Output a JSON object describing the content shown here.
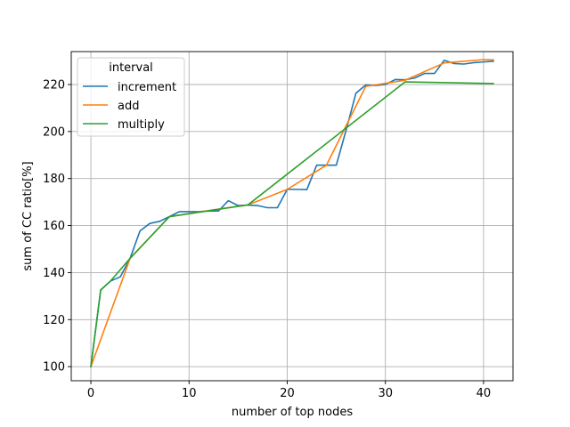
{
  "chart_data": {
    "type": "line",
    "title": "",
    "xlabel": "number of top nodes",
    "ylabel": "sum of CC ratio[%]",
    "xlim": [
      -2,
      43
    ],
    "ylim": [
      94,
      234
    ],
    "xticks": [
      0,
      10,
      20,
      30,
      40
    ],
    "yticks": [
      100,
      120,
      140,
      160,
      180,
      200,
      220
    ],
    "grid": true,
    "legend": {
      "title": "interval",
      "position": "top-left"
    },
    "series": [
      {
        "name": "increment",
        "color": "#1f77b4",
        "points": [
          [
            0,
            100
          ],
          [
            1,
            132.6
          ],
          [
            2,
            136.4
          ],
          [
            3,
            138.2
          ],
          [
            4,
            146.1
          ],
          [
            5,
            157.7
          ],
          [
            6,
            160.9
          ],
          [
            7,
            161.8
          ],
          [
            8,
            163.8
          ],
          [
            9,
            165.9
          ],
          [
            10,
            165.9
          ],
          [
            11,
            165.9
          ],
          [
            12,
            166.2
          ],
          [
            13,
            166.2
          ],
          [
            14,
            170.6
          ],
          [
            15,
            168.5
          ],
          [
            16,
            168.7
          ],
          [
            17,
            168.5
          ],
          [
            18,
            167.6
          ],
          [
            19,
            167.6
          ],
          [
            20,
            175.4
          ],
          [
            21,
            175.4
          ],
          [
            22,
            175.3
          ],
          [
            23,
            185.7
          ],
          [
            24,
            185.7
          ],
          [
            25,
            185.7
          ],
          [
            26,
            200.6
          ],
          [
            27,
            216.3
          ],
          [
            28,
            219.8
          ],
          [
            29,
            219.6
          ],
          [
            30,
            220.0
          ],
          [
            31,
            222.1
          ],
          [
            32,
            222.0
          ],
          [
            33,
            222.8
          ],
          [
            34,
            224.7
          ],
          [
            35,
            224.7
          ],
          [
            36,
            230.3
          ],
          [
            37,
            228.9
          ],
          [
            38,
            228.7
          ],
          [
            39,
            229.3
          ],
          [
            40,
            229.6
          ],
          [
            41,
            229.9
          ]
        ]
      },
      {
        "name": "add",
        "color": "#ff7f0e",
        "points": [
          [
            0,
            100
          ],
          [
            4,
            146.1
          ],
          [
            8,
            163.8
          ],
          [
            12,
            166.4
          ],
          [
            16,
            168.8
          ],
          [
            20,
            175.4
          ],
          [
            24,
            185.7
          ],
          [
            28,
            219.2
          ],
          [
            32,
            221.8
          ],
          [
            36,
            229.2
          ],
          [
            40,
            230.6
          ],
          [
            41,
            230.5
          ]
        ]
      },
      {
        "name": "multiply",
        "color": "#2ca02c",
        "points": [
          [
            0,
            100
          ],
          [
            1,
            132.6
          ],
          [
            2,
            136.4
          ],
          [
            4,
            146.1
          ],
          [
            8,
            163.8
          ],
          [
            16,
            168.8
          ],
          [
            32,
            221.1
          ],
          [
            41,
            220.4
          ]
        ]
      }
    ]
  }
}
